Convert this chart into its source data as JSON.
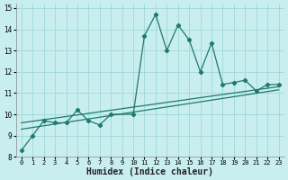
{
  "xlabel": "Humidex (Indice chaleur)",
  "background_color": "#c8eef0",
  "line_color": "#1e7a6a",
  "grid_color": "#a0d8d8",
  "xlim": [
    -0.5,
    23.5
  ],
  "ylim": [
    8,
    15.2
  ],
  "yticks": [
    8,
    9,
    10,
    11,
    12,
    13,
    14,
    15
  ],
  "xticks": [
    0,
    1,
    2,
    3,
    4,
    5,
    6,
    7,
    8,
    9,
    10,
    11,
    12,
    13,
    14,
    15,
    16,
    17,
    18,
    19,
    20,
    21,
    22,
    23
  ],
  "xtick_labels": [
    "0",
    "1",
    "2",
    "3",
    "4",
    "5",
    "6",
    "7",
    "8",
    "9",
    "10",
    "11",
    "12",
    "13",
    "14",
    "15",
    "16",
    "17",
    "18",
    "19",
    "20",
    "21",
    "22",
    "23"
  ],
  "line1_x": [
    0,
    1,
    2,
    3,
    4,
    5,
    6,
    7,
    8,
    10,
    11,
    12,
    13,
    14,
    15,
    16,
    17,
    18,
    19,
    20,
    21,
    22,
    23
  ],
  "line1_y": [
    8.3,
    9.0,
    9.7,
    9.6,
    9.6,
    10.2,
    9.7,
    9.5,
    10.0,
    10.0,
    13.7,
    14.7,
    13.0,
    14.2,
    13.5,
    12.0,
    13.35,
    11.4,
    11.5,
    11.6,
    11.1,
    11.4,
    11.4
  ],
  "line2_x": [
    0,
    23
  ],
  "line2_y": [
    9.6,
    11.3
  ],
  "line3_x": [
    0,
    23
  ],
  "line3_y": [
    9.3,
    11.15
  ],
  "font_size": 7
}
